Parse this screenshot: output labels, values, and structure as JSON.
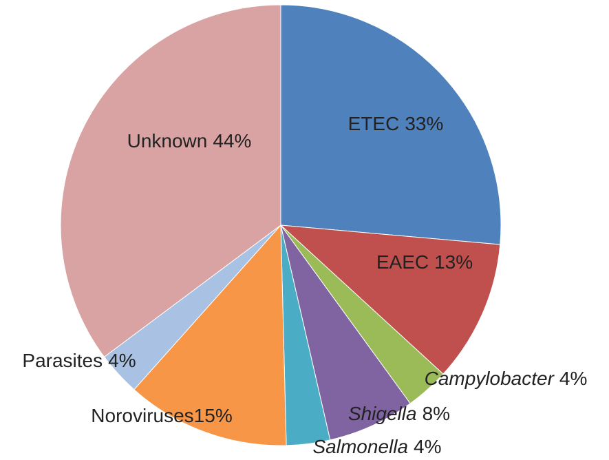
{
  "chart_data": {
    "type": "pie",
    "categories": [
      "ETEC",
      "EAEC",
      "Campylobacter",
      "Shigella",
      "Salmonella",
      "Noroviruses",
      "Parasites",
      "Unknown"
    ],
    "values": [
      33,
      13,
      4,
      8,
      4,
      15,
      4,
      44
    ],
    "value_labels": [
      "33%",
      "13%",
      "4%",
      "8%",
      "4%",
      "15%",
      "4%",
      "44%"
    ],
    "colors": [
      "#4f81bd",
      "#c0504d",
      "#9bbb59",
      "#8064a2",
      "#4bacc6",
      "#f79646",
      "#a9c1e2",
      "#d9a3a3"
    ]
  }
}
